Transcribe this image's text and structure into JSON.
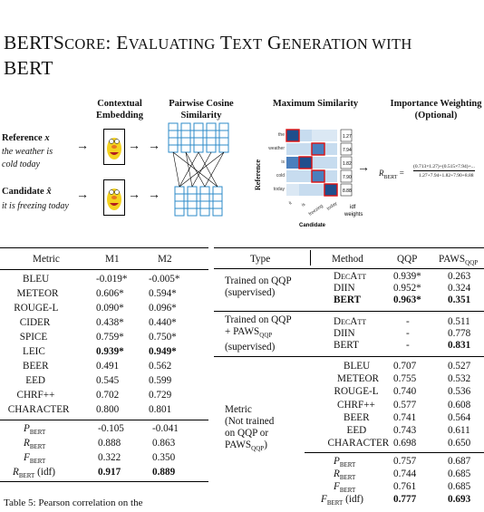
{
  "title": {
    "line1_a": "BERTS",
    "line1_b": "CORE",
    "line1_c": ": E",
    "line1_d": "VALUATING",
    "line1_e": " T",
    "line1_f": "EXT",
    "line1_g": " G",
    "line1_h": "ENERATION WITH",
    "line2": "BERT"
  },
  "figure": {
    "stage1": "Contextual\nEmbedding",
    "stage2": "Pairwise Cosine\nSimilarity",
    "stage3": "Maximum Similarity",
    "stage4": "Importance Weighting\n(Optional)",
    "reference_label": "Reference",
    "reference_var": "x",
    "reference_text": "the weather is\ncold today",
    "candidate_label": "Candidate",
    "candidate_var": "x̂",
    "candidate_text": "it is freezing today",
    "y_axis": "Reference",
    "x_axis": "Candidate",
    "idf_label": "idf\nweights",
    "row_words": [
      "the",
      "weather",
      "is",
      "cold",
      "today"
    ],
    "col_words": [
      "it",
      "is",
      "freezing",
      "today"
    ],
    "idf_values": [
      "1.27",
      "7.94",
      "1.82",
      "7.90",
      "8.88"
    ],
    "formula_lhs": "R",
    "formula_sub": "BERT",
    "formula_num": "(0.713×1.27)+(0.515×7.94)+...",
    "formula_den": "1.27+7.94+1.82+7.90+8.88"
  },
  "table1": {
    "headers": [
      "Metric",
      "M1",
      "M2"
    ],
    "rows": [
      [
        "BLEU",
        "-0.019*",
        "-0.005*"
      ],
      [
        "METEOR",
        "0.606*",
        "0.594*"
      ],
      [
        "ROUGE-L",
        "0.090*",
        "0.096*"
      ],
      [
        "CIDER",
        "0.438*",
        "0.440*"
      ],
      [
        "SPICE",
        "0.759*",
        "0.750*"
      ],
      [
        "LEIC",
        "0.939*",
        "0.949*"
      ],
      [
        "BEER",
        "0.491",
        "0.562"
      ],
      [
        "EED",
        "0.545",
        "0.599"
      ],
      [
        "CHRF++",
        "0.702",
        "0.729"
      ],
      [
        "CHARACTER",
        "0.800",
        "0.801"
      ]
    ],
    "bert_rows": [
      [
        "P",
        "BERT",
        "-0.105",
        "-0.041"
      ],
      [
        "R",
        "BERT",
        "0.888",
        "0.863"
      ],
      [
        "F",
        "BERT",
        "0.322",
        "0.350"
      ],
      [
        "R",
        "BERT (idf)",
        "0.917",
        "0.889"
      ]
    ],
    "caption": "Table 5: Pearson correlation on the"
  },
  "table2": {
    "headers": [
      "Type",
      "Method",
      "QQP",
      "PAWS",
      "QQP"
    ],
    "group1_type": "Trained on QQP\n(supervised)",
    "group1": [
      [
        "DecAtt",
        "0.939*",
        "0.263"
      ],
      [
        "DIIN",
        "0.952*",
        "0.324"
      ],
      [
        "BERT",
        "0.963*",
        "0.351"
      ]
    ],
    "group2_type": "Trained on QQP\n+ PAWS",
    "group2_type_sub": "QQP",
    "group2_type_end": "(supervised)",
    "group2": [
      [
        "DecAtt",
        "-",
        "0.511"
      ],
      [
        "DIIN",
        "-",
        "0.778"
      ],
      [
        "BERT",
        "-",
        "0.831"
      ]
    ],
    "group3_type": "Metric\n(Not trained\non QQP or\nPAWS",
    "group3_type_sub": "QQP",
    "group3_type_end": ")",
    "group3": [
      [
        "BLEU",
        "0.707",
        "0.527"
      ],
      [
        "METEOR",
        "0.755",
        "0.532"
      ],
      [
        "ROUGE-L",
        "0.740",
        "0.536"
      ],
      [
        "CHRF++",
        "0.577",
        "0.608"
      ],
      [
        "BEER",
        "0.741",
        "0.564"
      ],
      [
        "EED",
        "0.743",
        "0.611"
      ],
      [
        "CHARACTER",
        "0.698",
        "0.650"
      ]
    ],
    "group4": [
      [
        "P",
        "BERT",
        "0.757",
        "0.687"
      ],
      [
        "R",
        "BERT",
        "0.744",
        "0.685"
      ],
      [
        "F",
        "BERT",
        "0.761",
        "0.685"
      ],
      [
        "F",
        "BERT (idf)",
        "0.777",
        "0.693"
      ]
    ]
  }
}
